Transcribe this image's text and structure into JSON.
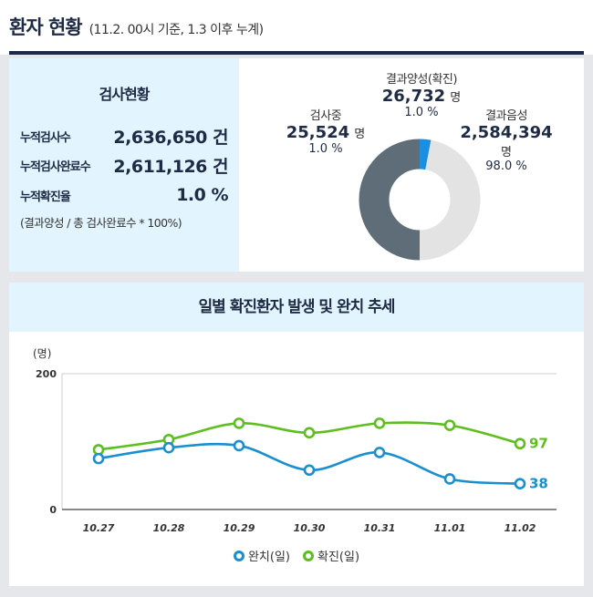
{
  "header": {
    "title": "환자 현황",
    "subtitle": "(11.2. 00시 기준, 1.3 이후 누계)"
  },
  "stats": {
    "title": "검사현황",
    "rows": [
      {
        "label": "누적검사수",
        "value": "2,636,650 건"
      },
      {
        "label": "누적검사완료수",
        "value": "2,611,126 건"
      },
      {
        "label": "누적확진율",
        "value": "1.0 %"
      }
    ],
    "note": "(결과양성 / 총 검사완료수 * 100%)"
  },
  "donut": {
    "positive": {
      "name": "결과양성(확진)",
      "value": "26,732",
      "unit": "명",
      "pct": "1.0 %",
      "share": 1.0,
      "color": "#1a8fe0"
    },
    "negative": {
      "name": "결과음성",
      "value": "2,584,394",
      "unit": "명",
      "pct": "98.0 %",
      "share": 98.0,
      "color": "#e3e3e3"
    },
    "testing": {
      "name": "검사중",
      "value": "25,524",
      "unit": "명",
      "pct": "1.0 %",
      "share": 1.0,
      "color": "#5e6d78"
    }
  },
  "chart_title": "일별 확진환자 발생 및 완치 추세",
  "chart_data": {
    "type": "line",
    "ylabel": "(명)",
    "ylim": [
      0,
      200
    ],
    "yticks": [
      "0",
      "200"
    ],
    "categories": [
      "10.27",
      "10.28",
      "10.29",
      "10.30",
      "10.31",
      "11.01",
      "11.02"
    ],
    "series": [
      {
        "name": "완치(일)",
        "color": "#1a8fd0",
        "values": [
          75,
          91,
          94,
          58,
          84,
          45,
          38
        ],
        "end_label": "38"
      },
      {
        "name": "확진(일)",
        "color": "#5cbf1e",
        "values": [
          88,
          103,
          127,
          113,
          127,
          124,
          97
        ],
        "end_label": "97"
      }
    ],
    "grid": true,
    "legend": "bottom"
  }
}
